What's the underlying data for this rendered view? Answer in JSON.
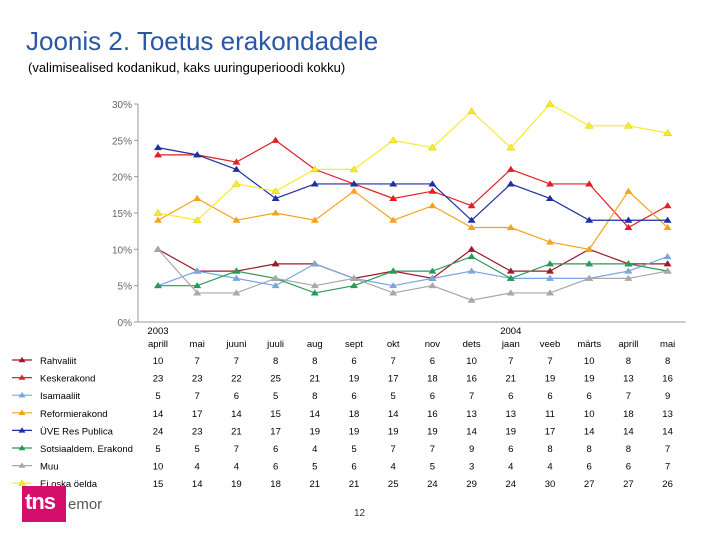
{
  "title": "Joonis 2. Toetus erakondadele",
  "subtitle": "(valimisealised kodanikud, kaks uuringuperioodi kokku)",
  "logo": {
    "brand": "tns",
    "name": "emor"
  },
  "page_number": "12",
  "chart_data": {
    "type": "line",
    "categories": [
      "aprill",
      "mai",
      "juuni",
      "juuli",
      "aug",
      "sept",
      "okt",
      "nov",
      "dets",
      "jaan",
      "veeb",
      "märts",
      "aprill",
      "mai"
    ],
    "year_labels": [
      {
        "index": 0,
        "label": "2003"
      },
      {
        "index": 9,
        "label": "2004"
      }
    ],
    "ylim": [
      0,
      30
    ],
    "yticks": [
      "0%",
      "5%",
      "10%",
      "15%",
      "20%",
      "25%",
      "30%"
    ],
    "grid": false,
    "series": [
      {
        "name": "Rahvaliit",
        "color": "#9a1a2a",
        "marker": "triangle",
        "values": [
          10,
          7,
          7,
          8,
          8,
          6,
          7,
          6,
          10,
          7,
          7,
          10,
          8,
          8
        ]
      },
      {
        "name": "Keskerakond",
        "color": "#e21f26",
        "marker": "triangle",
        "values": [
          23,
          23,
          22,
          25,
          21,
          19,
          17,
          18,
          16,
          21,
          19,
          19,
          13,
          16
        ]
      },
      {
        "name": "Isamaaliit",
        "color": "#7aa6e0",
        "marker": "triangle",
        "values": [
          5,
          7,
          6,
          5,
          8,
          6,
          5,
          6,
          7,
          6,
          6,
          6,
          7,
          9
        ]
      },
      {
        "name": "Reformierakond",
        "color": "#f5a31a",
        "marker": "triangle",
        "values": [
          14,
          17,
          14,
          15,
          14,
          18,
          14,
          16,
          13,
          13,
          11,
          10,
          18,
          13
        ]
      },
      {
        "name": "ÜVE Res Publica",
        "color": "#1c2fa3",
        "marker": "triangle",
        "values": [
          24,
          23,
          21,
          17,
          19,
          19,
          19,
          19,
          14,
          19,
          17,
          14,
          14,
          14
        ]
      },
      {
        "name": "Sotsiaaldem. Erakond",
        "color": "#2a9a5a",
        "marker": "triangle",
        "values": [
          5,
          5,
          7,
          6,
          4,
          5,
          7,
          7,
          9,
          6,
          8,
          8,
          8,
          7
        ]
      },
      {
        "name": "Muu",
        "color": "#a8a8a8",
        "marker": "triangle",
        "values": [
          10,
          4,
          4,
          6,
          5,
          6,
          4,
          5,
          3,
          4,
          4,
          6,
          6,
          7
        ]
      },
      {
        "name": "Ei oska öelda",
        "color": "#f7ec2a",
        "marker": "triangle",
        "values": [
          15,
          14,
          19,
          18,
          21,
          21,
          25,
          24,
          29,
          24,
          30,
          27,
          27,
          26
        ]
      }
    ]
  }
}
